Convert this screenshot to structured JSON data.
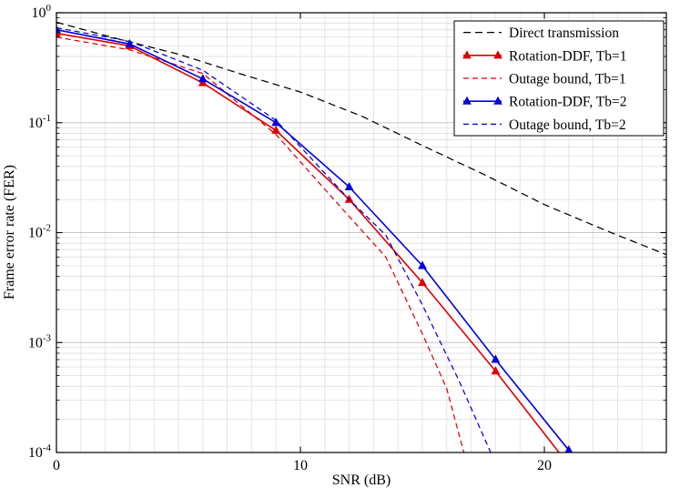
{
  "chart_data": {
    "type": "line",
    "title": "",
    "xlabel": "SNR (dB)",
    "ylabel": "Frame error rate (FER)",
    "x_scale": "linear",
    "y_scale": "log",
    "xlim": [
      0,
      25
    ],
    "ylim": [
      0.0001,
      1
    ],
    "x_ticks": [
      0,
      10,
      20
    ],
    "x_minor_grid_step": 1,
    "y_tick_exponents": [
      0,
      -1,
      -2,
      -3,
      -4
    ],
    "grid": true,
    "legend": {
      "position": "top-right",
      "border": true
    },
    "colors": {
      "grid_minor": "#dfdfdf",
      "grid_major": "#c6c6c6",
      "axis": "#000000",
      "background": "#ffffff",
      "red_series": "#dd0000",
      "blue_series": "#0000dd",
      "black_series": "#000000"
    },
    "series": [
      {
        "name": "Direct transmission",
        "color": "#000000",
        "line": "dashed",
        "marker": "none",
        "x": [
          0,
          2.5,
          5,
          7.5,
          10,
          12.5,
          15,
          17.5,
          20,
          22.5,
          25
        ],
        "y": [
          0.82,
          0.58,
          0.42,
          0.28,
          0.19,
          0.115,
          0.062,
          0.034,
          0.018,
          0.0105,
          0.0063
        ]
      },
      {
        "name": "Rotation-DDF, Tb=1",
        "color": "#dd0000",
        "line": "solid",
        "marker": "triangle",
        "marker_every_db": 3,
        "x": [
          0,
          3,
          6,
          9,
          12,
          15,
          18,
          20.6
        ],
        "y": [
          0.65,
          0.5,
          0.23,
          0.085,
          0.02,
          0.0035,
          0.00055,
          0.0001
        ]
      },
      {
        "name": "Outage bound, Tb=1",
        "color": "#dd0000",
        "line": "dashed",
        "marker": "none",
        "x": [
          0,
          3,
          6,
          9,
          12,
          13.5,
          15,
          16,
          16.7
        ],
        "y": [
          0.6,
          0.46,
          0.28,
          0.078,
          0.014,
          0.006,
          0.0012,
          0.00038,
          0.0001
        ]
      },
      {
        "name": "Rotation-DDF, Tb=2",
        "color": "#0000dd",
        "line": "solid",
        "marker": "triangle",
        "marker_every_db": 3,
        "x": [
          0,
          3,
          6,
          9,
          12,
          15,
          18,
          21
        ],
        "y": [
          0.7,
          0.52,
          0.25,
          0.1,
          0.026,
          0.005,
          0.0007,
          0.000105
        ]
      },
      {
        "name": "Outage bound, Tb=2",
        "color": "#0000dd",
        "line": "dashed",
        "marker": "none",
        "x": [
          0,
          3,
          6,
          9,
          12,
          13.5,
          15,
          16.5,
          17.8
        ],
        "y": [
          0.73,
          0.55,
          0.3,
          0.105,
          0.02,
          0.0095,
          0.0022,
          0.00045,
          0.0001
        ]
      }
    ]
  }
}
